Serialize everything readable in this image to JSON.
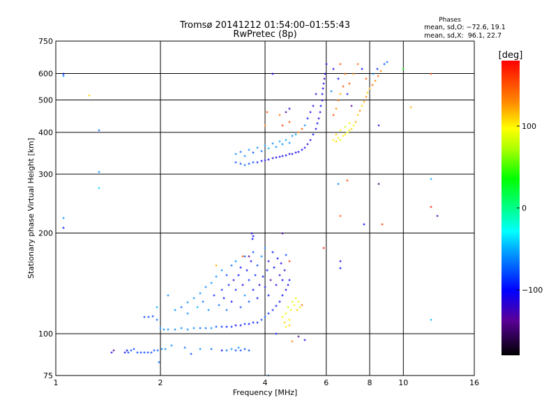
{
  "chart_data": {
    "type": "scatter",
    "title": "Tromsø 20141212 01:54:00–01:55:43",
    "subtitle": "RwPretec (8p)",
    "stats": {
      "heading": "Phases",
      "o_line": "mean, sd,O: −72.6, 19.1",
      "x_line": "mean, sd,X:  96.1, 22.7"
    },
    "xlabel": "Frequency [MHz]",
    "ylabel": "Stationary phase Virtual Height [km]",
    "xscale": "log",
    "yscale": "log",
    "xlim": [
      1,
      16
    ],
    "ylim": [
      75,
      750
    ],
    "xticks": [
      {
        "v": 1,
        "label": "1"
      },
      {
        "v": 2,
        "label": "2"
      },
      {
        "v": 4,
        "label": "4"
      },
      {
        "v": 6,
        "label": "6"
      },
      {
        "v": 8,
        "label": "8"
      },
      {
        "v": 10,
        "label": "10"
      },
      {
        "v": 16,
        "label": "16"
      }
    ],
    "yticks": [
      {
        "v": 75,
        "label": "75"
      },
      {
        "v": 100,
        "label": "100"
      },
      {
        "v": 200,
        "label": "200"
      },
      {
        "v": 300,
        "label": "300"
      },
      {
        "v": 400,
        "label": "400"
      },
      {
        "v": 500,
        "label": "500"
      },
      {
        "v": 600,
        "label": "600"
      },
      {
        "v": 750,
        "label": "750"
      }
    ],
    "xgrid": [
      2,
      4,
      6,
      8,
      10
    ],
    "ygrid": [
      100,
      200,
      300,
      400,
      500,
      600
    ],
    "colorbar": {
      "label": "[deg]",
      "range": [
        -180,
        180
      ],
      "ticks": [
        {
          "v": 100,
          "label": "100"
        },
        {
          "v": 0,
          "label": "0"
        },
        {
          "v": -100,
          "label": "−100"
        }
      ]
    },
    "point_fields": [
      "frequency_MHz",
      "height_km",
      "phase_deg"
    ],
    "points": [
      [
        1.45,
        88,
        -120
      ],
      [
        1.47,
        89,
        -130
      ],
      [
        1.58,
        88,
        -110
      ],
      [
        1.6,
        89,
        -100
      ],
      [
        1.68,
        90,
        -80
      ],
      [
        1.72,
        88,
        -80
      ],
      [
        1.76,
        88,
        -80
      ],
      [
        1.8,
        88,
        -80
      ],
      [
        1.84,
        88,
        -80
      ],
      [
        1.88,
        88,
        -80
      ],
      [
        1.92,
        89,
        -80
      ],
      [
        1.96,
        89,
        -70
      ],
      [
        2.02,
        90,
        -60
      ],
      [
        2.07,
        90,
        -60
      ],
      [
        2.15,
        92,
        -60
      ],
      [
        2.35,
        91,
        -70
      ],
      [
        2.6,
        90,
        -60
      ],
      [
        2.8,
        90,
        -70
      ],
      [
        3.0,
        89,
        -100
      ],
      [
        3.1,
        89,
        -70
      ],
      [
        3.2,
        90,
        -60
      ],
      [
        3.3,
        89,
        -80
      ],
      [
        3.4,
        89,
        -80
      ],
      [
        3.5,
        90,
        -80
      ],
      [
        3.6,
        89,
        -80
      ],
      [
        3.35,
        91,
        -60
      ],
      [
        2.45,
        87,
        -80
      ],
      [
        1.98,
        82,
        -70
      ],
      [
        1.62,
        88,
        -80
      ],
      [
        1.65,
        89,
        -80
      ],
      [
        1.8,
        112,
        -80
      ],
      [
        1.85,
        112,
        -80
      ],
      [
        1.9,
        113,
        -80
      ],
      [
        1.95,
        110,
        -70
      ],
      [
        2.0,
        104,
        -60
      ],
      [
        2.05,
        103,
        -60
      ],
      [
        2.1,
        103,
        -60
      ],
      [
        2.2,
        103,
        -60
      ],
      [
        2.3,
        104,
        -60
      ],
      [
        2.4,
        103,
        -60
      ],
      [
        2.5,
        104,
        -60
      ],
      [
        2.6,
        104,
        -70
      ],
      [
        2.7,
        104,
        -70
      ],
      [
        2.8,
        104,
        -60
      ],
      [
        2.9,
        105,
        -80
      ],
      [
        3.0,
        105,
        -90
      ],
      [
        3.1,
        105,
        -100
      ],
      [
        3.2,
        105,
        -90
      ],
      [
        3.3,
        106,
        -100
      ],
      [
        3.4,
        106,
        -100
      ],
      [
        3.5,
        107,
        -90
      ],
      [
        3.6,
        107,
        -100
      ],
      [
        3.7,
        108,
        -90
      ],
      [
        3.8,
        108,
        -90
      ],
      [
        3.9,
        110,
        -80
      ],
      [
        4.0,
        112,
        -80
      ],
      [
        4.1,
        115,
        -90
      ],
      [
        4.2,
        118,
        -90
      ],
      [
        4.3,
        121,
        -100
      ],
      [
        4.4,
        125,
        -100
      ],
      [
        4.5,
        130,
        -100
      ],
      [
        4.6,
        135,
        -110
      ],
      [
        4.65,
        140,
        -110
      ],
      [
        4.7,
        145,
        -100
      ],
      [
        2.2,
        118,
        -60
      ],
      [
        2.3,
        120,
        -70
      ],
      [
        2.4,
        115,
        -60
      ],
      [
        2.4,
        124,
        -60
      ],
      [
        2.5,
        128,
        -60
      ],
      [
        2.55,
        120,
        -50
      ],
      [
        2.6,
        132,
        -60
      ],
      [
        2.65,
        125,
        -70
      ],
      [
        2.7,
        138,
        -60
      ],
      [
        2.75,
        118,
        -60
      ],
      [
        2.8,
        142,
        -60
      ],
      [
        2.85,
        130,
        -90
      ],
      [
        2.9,
        148,
        -60
      ],
      [
        2.95,
        122,
        -70
      ],
      [
        3.0,
        155,
        -60
      ],
      [
        3.0,
        135,
        -90
      ],
      [
        3.05,
        128,
        -100
      ],
      [
        3.1,
        150,
        -80
      ],
      [
        3.1,
        118,
        -70
      ],
      [
        3.15,
        140,
        -90
      ],
      [
        3.2,
        160,
        -70
      ],
      [
        3.2,
        125,
        -100
      ],
      [
        3.25,
        145,
        -110
      ],
      [
        3.3,
        135,
        -90
      ],
      [
        3.3,
        165,
        -60
      ],
      [
        3.35,
        150,
        -100
      ],
      [
        3.4,
        120,
        -80
      ],
      [
        3.4,
        158,
        -100
      ],
      [
        3.45,
        140,
        -110
      ],
      [
        3.5,
        170,
        -80
      ],
      [
        3.5,
        130,
        -60
      ],
      [
        3.55,
        155,
        -100
      ],
      [
        3.6,
        145,
        -90
      ],
      [
        3.6,
        125,
        -80
      ],
      [
        3.65,
        165,
        -110
      ],
      [
        3.7,
        135,
        -100
      ],
      [
        3.7,
        175,
        -80
      ],
      [
        3.75,
        150,
        -90
      ],
      [
        3.8,
        160,
        -80
      ],
      [
        3.8,
        128,
        -100
      ],
      [
        3.85,
        140,
        -110
      ],
      [
        3.9,
        170,
        -60
      ],
      [
        3.95,
        148,
        -100
      ],
      [
        4.0,
        138,
        -110
      ],
      [
        4.0,
        180,
        -70
      ],
      [
        4.05,
        155,
        -100
      ],
      [
        4.1,
        165,
        -110
      ],
      [
        4.1,
        130,
        -100
      ],
      [
        4.15,
        145,
        -130
      ],
      [
        4.2,
        175,
        -100
      ],
      [
        4.25,
        158,
        -100
      ],
      [
        4.3,
        140,
        -110
      ],
      [
        4.35,
        168,
        -100
      ],
      [
        4.4,
        150,
        -120
      ],
      [
        4.45,
        162,
        -110
      ],
      [
        4.5,
        145,
        -100
      ],
      [
        4.55,
        155,
        -120
      ],
      [
        4.6,
        172,
        -80
      ],
      [
        3.6,
        170,
        -140
      ],
      [
        2.1,
        130,
        -60
      ],
      [
        1.95,
        120,
        -50
      ],
      [
        2.9,
        160,
        120
      ],
      [
        3.45,
        170,
        150
      ],
      [
        4.7,
        165,
        160
      ],
      [
        3.68,
        192,
        -100
      ],
      [
        3.66,
        200,
        -110
      ],
      [
        3.7,
        196,
        -100
      ],
      [
        4.5,
        112,
        100
      ],
      [
        4.55,
        108,
        110
      ],
      [
        4.6,
        115,
        90
      ],
      [
        4.65,
        120,
        80
      ],
      [
        4.7,
        110,
        100
      ],
      [
        4.75,
        118,
        90
      ],
      [
        4.8,
        125,
        90
      ],
      [
        4.85,
        122,
        100
      ],
      [
        4.9,
        128,
        90
      ],
      [
        4.95,
        118,
        110
      ],
      [
        5.0,
        125,
        100
      ],
      [
        5.05,
        120,
        90
      ],
      [
        4.6,
        105,
        100
      ],
      [
        4.7,
        106,
        110
      ],
      [
        5.1,
        122,
        140
      ],
      [
        3.3,
        325,
        -80
      ],
      [
        3.4,
        322,
        -80
      ],
      [
        3.5,
        320,
        -70
      ],
      [
        3.6,
        322,
        -80
      ],
      [
        3.7,
        325,
        -80
      ],
      [
        3.8,
        326,
        -90
      ],
      [
        3.9,
        328,
        -100
      ],
      [
        4.0,
        330,
        -110
      ],
      [
        4.1,
        332,
        -100
      ],
      [
        4.2,
        335,
        -110
      ],
      [
        4.3,
        337,
        -100
      ],
      [
        4.4,
        338,
        -110
      ],
      [
        4.5,
        340,
        -110
      ],
      [
        4.6,
        342,
        -100
      ],
      [
        4.7,
        344,
        -110
      ],
      [
        4.8,
        345,
        -110
      ],
      [
        4.9,
        348,
        -110
      ],
      [
        5.0,
        350,
        -100
      ],
      [
        5.1,
        355,
        -110
      ],
      [
        5.2,
        360,
        -110
      ],
      [
        5.3,
        368,
        -120
      ],
      [
        5.4,
        380,
        -110
      ],
      [
        5.5,
        395,
        -100
      ],
      [
        5.6,
        410,
        -110
      ],
      [
        5.65,
        425,
        -100
      ],
      [
        5.7,
        440,
        -110
      ],
      [
        5.75,
        460,
        -110
      ],
      [
        5.8,
        480,
        -100
      ],
      [
        5.83,
        500,
        -110
      ],
      [
        5.85,
        520,
        -100
      ],
      [
        5.88,
        540,
        -110
      ],
      [
        5.9,
        560,
        -110
      ],
      [
        5.93,
        580,
        -120
      ],
      [
        5.95,
        600,
        -110
      ],
      [
        6.0,
        640,
        -110
      ],
      [
        3.3,
        345,
        -60
      ],
      [
        3.4,
        350,
        -70
      ],
      [
        3.5,
        340,
        -60
      ],
      [
        3.6,
        355,
        -60
      ],
      [
        3.7,
        348,
        -80
      ],
      [
        3.8,
        360,
        -60
      ],
      [
        3.9,
        352,
        -70
      ],
      [
        4.0,
        365,
        -60
      ],
      [
        4.1,
        358,
        -50
      ],
      [
        4.2,
        370,
        -60
      ],
      [
        4.3,
        362,
        -60
      ],
      [
        4.4,
        375,
        -50
      ],
      [
        4.5,
        368,
        -60
      ],
      [
        4.6,
        380,
        -50
      ],
      [
        4.7,
        372,
        -60
      ],
      [
        4.8,
        390,
        -60
      ],
      [
        4.9,
        395,
        -50
      ],
      [
        5.0,
        400,
        140
      ],
      [
        5.1,
        410,
        150
      ],
      [
        5.2,
        420,
        -60
      ],
      [
        5.3,
        440,
        -100
      ],
      [
        5.4,
        460,
        -110
      ],
      [
        5.5,
        480,
        -110
      ],
      [
        5.6,
        520,
        -120
      ],
      [
        4.6,
        460,
        -130
      ],
      [
        4.7,
        470,
        -110
      ],
      [
        4.4,
        450,
        140
      ],
      [
        4.5,
        420,
        160
      ],
      [
        4.7,
        430,
        150
      ],
      [
        6.3,
        380,
        100
      ],
      [
        6.4,
        375,
        110
      ],
      [
        6.5,
        385,
        100
      ],
      [
        6.6,
        380,
        90
      ],
      [
        6.7,
        390,
        100
      ],
      [
        6.8,
        395,
        100
      ],
      [
        6.9,
        400,
        90
      ],
      [
        7.0,
        405,
        100
      ],
      [
        7.1,
        410,
        110
      ],
      [
        7.2,
        420,
        100
      ],
      [
        6.4,
        395,
        110
      ],
      [
        6.6,
        405,
        100
      ],
      [
        6.8,
        415,
        80
      ],
      [
        7.0,
        425,
        100
      ],
      [
        7.3,
        430,
        120
      ],
      [
        7.4,
        450,
        110
      ],
      [
        7.5,
        465,
        130
      ],
      [
        7.6,
        480,
        110
      ],
      [
        7.7,
        495,
        120
      ],
      [
        7.8,
        510,
        130
      ],
      [
        7.9,
        525,
        110
      ],
      [
        8.0,
        540,
        120
      ],
      [
        8.15,
        555,
        140
      ],
      [
        8.3,
        570,
        130
      ],
      [
        8.45,
        590,
        140
      ],
      [
        8.6,
        610,
        130
      ],
      [
        8.8,
        640,
        -80
      ],
      [
        6.3,
        450,
        150
      ],
      [
        6.4,
        470,
        130
      ],
      [
        6.5,
        500,
        140
      ],
      [
        6.6,
        520,
        120
      ],
      [
        6.7,
        550,
        150
      ],
      [
        6.5,
        580,
        -100
      ],
      [
        6.3,
        620,
        -110
      ],
      [
        6.6,
        640,
        150
      ],
      [
        6.8,
        600,
        140
      ],
      [
        7.0,
        560,
        150
      ],
      [
        6.9,
        520,
        -90
      ],
      [
        7.2,
        600,
        130
      ],
      [
        7.4,
        640,
        140
      ],
      [
        7.6,
        620,
        -100
      ],
      [
        7.8,
        580,
        150
      ],
      [
        8.2,
        600,
        -60
      ],
      [
        8.4,
        620,
        -90
      ],
      [
        9.0,
        650,
        -70
      ],
      [
        7.1,
        480,
        -130
      ],
      [
        6.2,
        530,
        -60
      ],
      [
        8.5,
        420,
        -120
      ],
      [
        1.05,
        600,
        -100
      ],
      [
        1.05,
        590,
        -60
      ],
      [
        1.05,
        222,
        -60
      ],
      [
        1.05,
        207,
        -100
      ],
      [
        1.25,
        515,
        110
      ],
      [
        1.33,
        405,
        -70
      ],
      [
        1.33,
        305,
        -60
      ],
      [
        1.33,
        272,
        -40
      ],
      [
        12,
        600,
        150
      ],
      [
        12,
        290,
        -50
      ],
      [
        12,
        240,
        170
      ],
      [
        12.5,
        225,
        -130
      ],
      [
        12,
        110,
        -50
      ],
      [
        8.5,
        280,
        -150
      ],
      [
        8.7,
        212,
        160
      ],
      [
        7.7,
        212,
        -100
      ],
      [
        6.5,
        280,
        -60
      ],
      [
        6.9,
        287,
        150
      ],
      [
        6.6,
        165,
        -110
      ],
      [
        6.6,
        157,
        -100
      ],
      [
        6.6,
        225,
        150
      ],
      [
        5.9,
        180,
        170
      ],
      [
        10.5,
        475,
        120
      ],
      [
        10,
        620,
        40
      ],
      [
        4.2,
        600,
        -110
      ],
      [
        4.5,
        200,
        -130
      ],
      [
        4.1,
        75,
        -60
      ],
      [
        5.0,
        98,
        -140
      ],
      [
        4.8,
        95,
        130
      ],
      [
        5.2,
        96,
        -110
      ],
      [
        4.3,
        100,
        -100
      ],
      [
        4.05,
        460,
        150
      ],
      [
        4.0,
        420,
        140
      ]
    ]
  }
}
